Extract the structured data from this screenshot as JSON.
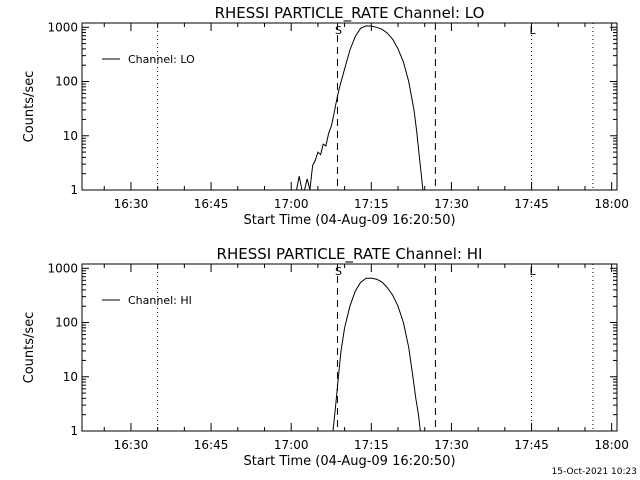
{
  "chart_data": [
    {
      "type": "line",
      "title": "RHESSI PARTICLE_RATE Channel: LO",
      "xlabel": "Start Time (04-Aug-09 16:20:50)",
      "ylabel": "Counts/sec",
      "yscale": "log",
      "ylim": [
        1,
        1200
      ],
      "xlim": [
        "16:20:50",
        "18:01:00"
      ],
      "xtick_labels": [
        "16:30",
        "16:45",
        "17:00",
        "17:15",
        "17:30",
        "17:45",
        "18:00"
      ],
      "ytick_labels": [
        "1",
        "10",
        "100",
        "1000"
      ],
      "legend": {
        "position": "top-left",
        "entries": [
          "Channel: LO"
        ]
      },
      "markers": [
        {
          "label": "S",
          "time": "17:08:40",
          "style": "dashed"
        },
        {
          "label": "",
          "time": "17:27:00",
          "style": "dashed"
        },
        {
          "label": "",
          "time": "16:35:00",
          "style": "dotted"
        },
        {
          "label": "L",
          "time": "17:45:00",
          "style": "dotted"
        },
        {
          "label": "",
          "time": "17:56:30",
          "style": "dotted"
        }
      ],
      "series": [
        {
          "name": "Channel: LO",
          "x": [
            "17:01:00",
            "17:01:30",
            "17:02:00",
            "17:02:30",
            "17:03:00",
            "17:03:30",
            "17:04:00",
            "17:04:30",
            "17:05:00",
            "17:05:30",
            "17:06:00",
            "17:06:30",
            "17:07:00",
            "17:07:30",
            "17:08:00",
            "17:08:30",
            "17:09:00",
            "17:10:00",
            "17:11:00",
            "17:12:00",
            "17:13:00",
            "17:14:00",
            "17:15:00",
            "17:16:00",
            "17:17:00",
            "17:18:00",
            "17:19:00",
            "17:20:00",
            "17:21:00",
            "17:22:00",
            "17:23:00",
            "17:23:30",
            "17:24:00",
            "17:24:20",
            "17:24:40"
          ],
          "y": [
            1.0,
            1.8,
            1.0,
            1.0,
            1.6,
            1.0,
            2.8,
            3.5,
            5.0,
            4.5,
            7.0,
            6.5,
            11,
            15,
            25,
            45,
            75,
            170,
            380,
            680,
            960,
            1060,
            1050,
            1000,
            920,
            780,
            600,
            400,
            230,
            100,
            30,
            12,
            4,
            2,
            1
          ]
        }
      ]
    },
    {
      "type": "line",
      "title": "RHESSI PARTICLE_RATE Channel: HI",
      "xlabel": "Start Time (04-Aug-09 16:20:50)",
      "ylabel": "Counts/sec",
      "yscale": "log",
      "ylim": [
        1,
        1200
      ],
      "xlim": [
        "16:20:50",
        "18:01:00"
      ],
      "xtick_labels": [
        "16:30",
        "16:45",
        "17:00",
        "17:15",
        "17:30",
        "17:45",
        "18:00"
      ],
      "ytick_labels": [
        "1",
        "10",
        "100",
        "1000"
      ],
      "legend": {
        "position": "top-left",
        "entries": [
          "Channel: HI"
        ]
      },
      "markers": [
        {
          "label": "S",
          "time": "17:08:40",
          "style": "dashed"
        },
        {
          "label": "",
          "time": "17:27:00",
          "style": "dashed"
        },
        {
          "label": "",
          "time": "16:35:00",
          "style": "dotted"
        },
        {
          "label": "L",
          "time": "17:45:00",
          "style": "dotted"
        },
        {
          "label": "",
          "time": "17:56:30",
          "style": "dotted"
        }
      ],
      "series": [
        {
          "name": "Channel: HI",
          "x": [
            "17:07:50",
            "17:08:20",
            "17:08:50",
            "17:09:20",
            "17:10:00",
            "17:11:00",
            "17:12:00",
            "17:13:00",
            "17:14:00",
            "17:15:00",
            "17:16:00",
            "17:17:00",
            "17:18:00",
            "17:19:00",
            "17:20:00",
            "17:21:00",
            "17:22:00",
            "17:22:40",
            "17:23:20",
            "17:23:50",
            "17:24:10"
          ],
          "y": [
            1,
            3,
            10,
            30,
            80,
            200,
            380,
            550,
            650,
            660,
            630,
            560,
            440,
            320,
            200,
            100,
            35,
            12,
            4,
            2,
            1
          ]
        }
      ]
    }
  ],
  "footer_timestamp": "15-Oct-2021 10:23"
}
